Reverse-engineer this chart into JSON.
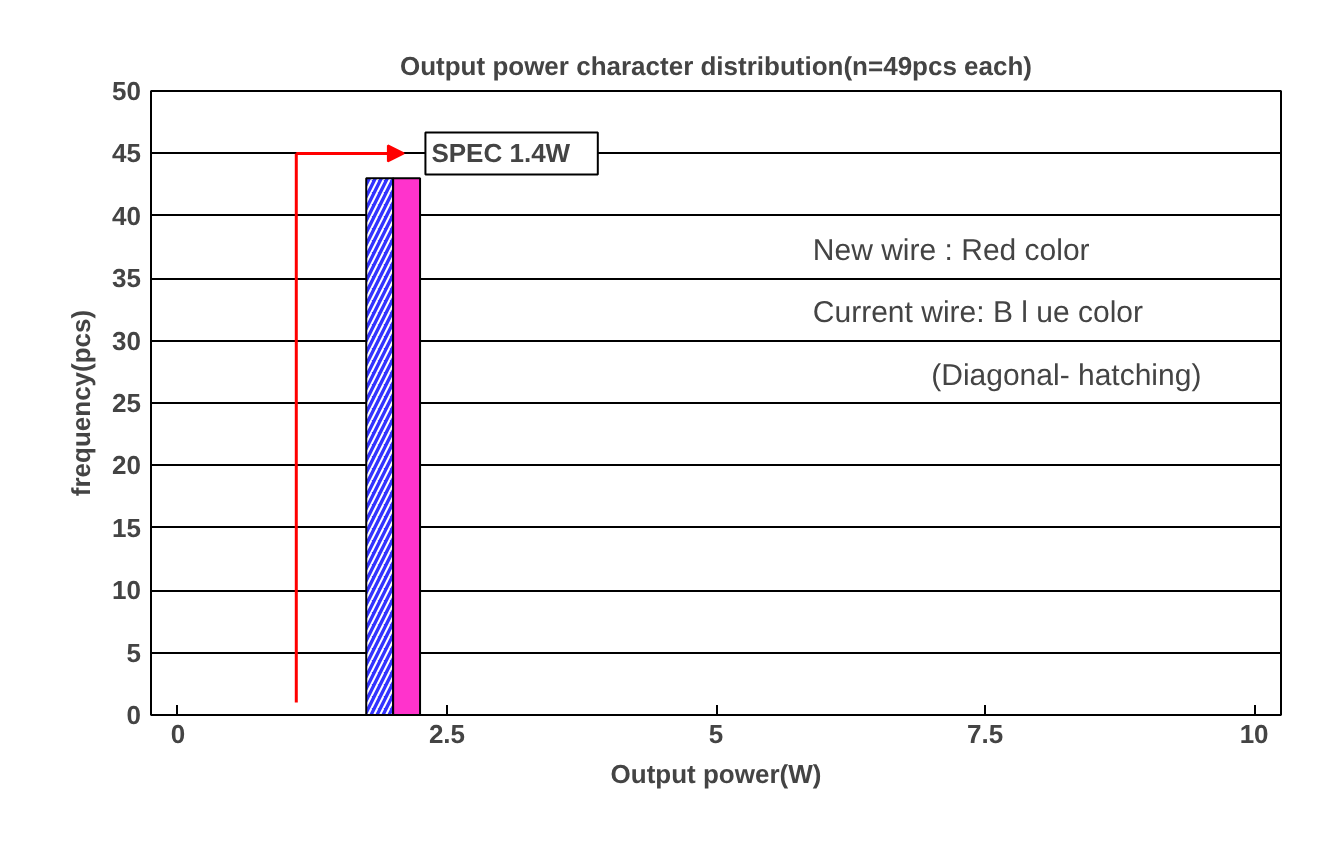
{
  "chart_data": {
    "type": "histogram",
    "title": "Output power character distribution(n=49pcs each)",
    "xlabel": "Output power(W)",
    "ylabel": "frequency(pcs)",
    "series": [
      {
        "color": "#3333ff",
        "values": [
          43,
          null
        ]
      },
      {
        "color": "#ff33cc",
        "values": [
          null,
          43
        ]
      }
    ],
    "bins": [
      1.75,
      2.0,
      2.25
    ],
    "xlim": [
      -0.25,
      10.25
    ],
    "xticks": [
      0,
      2.5,
      5,
      7.5,
      10
    ],
    "ylim": [
      0,
      50
    ],
    "yticks": [
      0,
      5,
      10,
      15,
      20,
      25,
      30,
      35,
      40,
      45,
      50
    ],
    "grid": "y",
    "ref_lines": [
      {
        "axis": "x",
        "value": 1.1,
        "label": "SPEC    1.4W",
        "color": "#ff0000"
      }
    ],
    "annotations": [
      "New wire : Red color",
      "Current wire: B l ue color",
      "(Diagonal- hatching)"
    ]
  }
}
